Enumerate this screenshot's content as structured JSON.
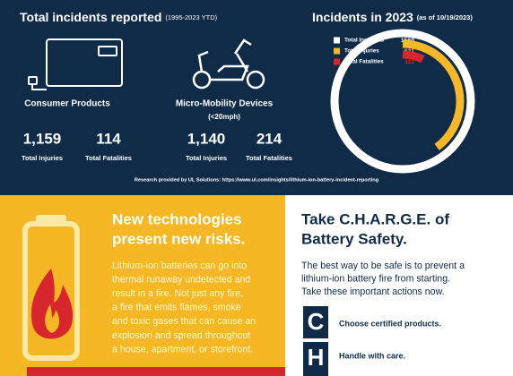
{
  "top": {
    "title": "Total incidents reported",
    "title_note": "(1995-2023 YTD)",
    "groups": [
      {
        "name": "Consumer Products",
        "stats": [
          {
            "value": "1,159",
            "label": "Total Injuries"
          },
          {
            "value": "114",
            "label": "Total Fatalities"
          }
        ]
      },
      {
        "name": "Micro-Mobility Devices",
        "note": "(<20mph)",
        "stats": [
          {
            "value": "1,140",
            "label": "Total Injuries"
          },
          {
            "value": "214",
            "label": "Total Fatalities"
          }
        ]
      }
    ],
    "source": "Research provided by UL Solutions: https://www.ul.com/insights/lithium-ion-battery-incident-reporting"
  },
  "chart_data": {
    "type": "radial-bar",
    "title": "Incidents in 2023",
    "subtitle": "(as of 10/19/2023)",
    "categories": [
      "Total Incidents",
      "Total Injuries",
      "Total Fatalities"
    ],
    "values": [
      1560,
      621,
      111
    ],
    "colors": [
      "#ffffff",
      "#f6b828",
      "#d8262e"
    ],
    "ylim": [
      0,
      1560
    ]
  },
  "risks": {
    "title_lines": [
      "New technologies",
      "present new risks."
    ],
    "body_lines": [
      "Lithium-ion batteries can go into",
      "thermal runaway undetected and",
      "result in a fire. Not just any fire,",
      "a fire that emits flames, smoke",
      "and toxic gases that can cause an",
      "explosion and spread throughout",
      "a house, apartment, or storefront."
    ]
  },
  "charge": {
    "title_lines": [
      "Take C.H.A.R.G.E. of",
      "Battery Safety."
    ],
    "body_lines": [
      "The best way to be safe is to prevent a",
      "lithium-ion battery fire from starting.",
      "Take these important actions now."
    ],
    "actions": [
      {
        "letter": "C",
        "text": "Choose certified products."
      },
      {
        "letter": "H",
        "text": "Handle with care."
      }
    ]
  }
}
